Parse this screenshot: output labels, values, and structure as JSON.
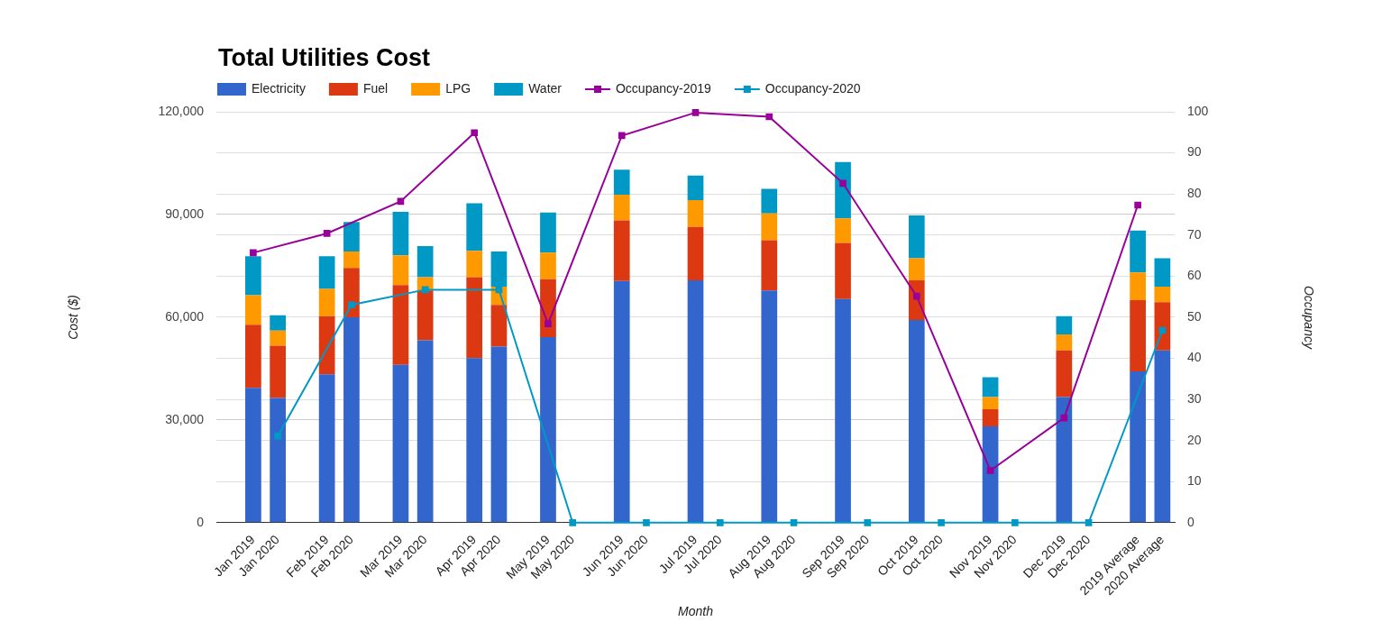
{
  "chart_data": {
    "type": "bar",
    "title": "Total Utilities Cost",
    "x_label": "Month",
    "y_label": "Cost ($)",
    "y2_label": "Occupancy",
    "stacked": true,
    "grid": true,
    "legend": "top-left",
    "categories": [
      null,
      "Jan 2019",
      "Jan 2020",
      null,
      "Feb 2019",
      "Feb 2020",
      null,
      "Mar 2019",
      "Mar 2020",
      null,
      "Apr 2019",
      "Apr 2020",
      null,
      "May 2019",
      "May 2020",
      null,
      "Jun 2019",
      "Jun 2020",
      null,
      "Jul 2019",
      "Jul 2020",
      null,
      "Aug 2019",
      "Aug 2020",
      null,
      "Sep 2019",
      "Sep 2020",
      null,
      "Oct 2019",
      "Oct 2020",
      null,
      "Nov 2019",
      "Nov 2020",
      null,
      "Dec 2019",
      "Dec 2020",
      null,
      "2019 Average",
      "2020 Average"
    ],
    "series": [
      {
        "name": "Electricity",
        "type": "bar",
        "color": "#3366cc",
        "values": [
          null,
          39400,
          36400,
          null,
          43300,
          60000,
          null,
          46100,
          53300,
          null,
          48100,
          51400,
          null,
          54200,
          null,
          null,
          70600,
          null,
          null,
          70800,
          null,
          null,
          67800,
          null,
          null,
          65300,
          null,
          null,
          59200,
          null,
          null,
          28100,
          null,
          null,
          36700,
          null,
          null,
          44200,
          50300
        ]
      },
      {
        "name": "Fuel",
        "type": "bar",
        "color": "#dc3912",
        "values": [
          null,
          18400,
          15300,
          null,
          17000,
          14400,
          null,
          23300,
          14500,
          null,
          23600,
          12200,
          null,
          16900,
          null,
          null,
          17700,
          null,
          null,
          15600,
          null,
          null,
          14700,
          null,
          null,
          16400,
          null,
          null,
          11600,
          null,
          null,
          5000,
          null,
          null,
          13600,
          null,
          null,
          20800,
          14100
        ]
      },
      {
        "name": "LPG",
        "type": "bar",
        "color": "#ff9900",
        "values": [
          null,
          8600,
          4400,
          null,
          8000,
          4800,
          null,
          8700,
          3900,
          null,
          7700,
          5300,
          null,
          7800,
          null,
          null,
          7500,
          null,
          null,
          7800,
          null,
          null,
          7800,
          null,
          null,
          7200,
          null,
          null,
          6400,
          null,
          null,
          3600,
          null,
          null,
          4700,
          null,
          null,
          8100,
          4500
        ]
      },
      {
        "name": "Water",
        "type": "bar",
        "color": "#0099c6",
        "values": [
          null,
          11400,
          4500,
          null,
          9500,
          8600,
          null,
          12700,
          9100,
          null,
          13900,
          10300,
          null,
          11700,
          null,
          null,
          7300,
          null,
          null,
          7200,
          null,
          null,
          7200,
          null,
          null,
          16400,
          null,
          null,
          12500,
          null,
          null,
          5800,
          null,
          null,
          5300,
          null,
          null,
          12200,
          8300
        ]
      },
      {
        "name": "Occupancy-2019",
        "type": "line",
        "axis": "y2",
        "marker": "square",
        "color": "#990099",
        "values": [
          null,
          65.7,
          null,
          null,
          70.4,
          null,
          null,
          78.2,
          null,
          null,
          94.9,
          null,
          null,
          48.4,
          null,
          null,
          94.2,
          null,
          null,
          99.8,
          null,
          null,
          98.8,
          null,
          null,
          82.6,
          null,
          null,
          55.1,
          null,
          null,
          12.7,
          null,
          null,
          25.5,
          null,
          null,
          77.3,
          null
        ]
      },
      {
        "name": "Occupancy-2020",
        "type": "line",
        "axis": "y2",
        "marker": "square",
        "color": "#0099c6",
        "values": [
          null,
          null,
          21.1,
          null,
          null,
          53,
          null,
          null,
          56.7,
          null,
          null,
          56.7,
          null,
          null,
          0,
          null,
          null,
          0,
          null,
          null,
          0,
          null,
          null,
          0,
          null,
          null,
          0,
          null,
          null,
          0,
          null,
          null,
          0,
          null,
          null,
          0,
          null,
          null,
          46.8
        ]
      }
    ],
    "ylim": [
      0,
      120000
    ],
    "yticks": [
      0,
      {
        "value": 30000,
        "label": "30,000"
      },
      {
        "value": 60000,
        "label": "60,000"
      },
      {
        "value": 90000,
        "label": "90,000"
      },
      {
        "value": 120000,
        "label": "120,000"
      }
    ],
    "y2lim": [
      0,
      100
    ],
    "y2ticks": [
      0,
      10,
      20,
      30,
      40,
      50,
      60,
      70,
      80,
      90,
      100
    ]
  }
}
